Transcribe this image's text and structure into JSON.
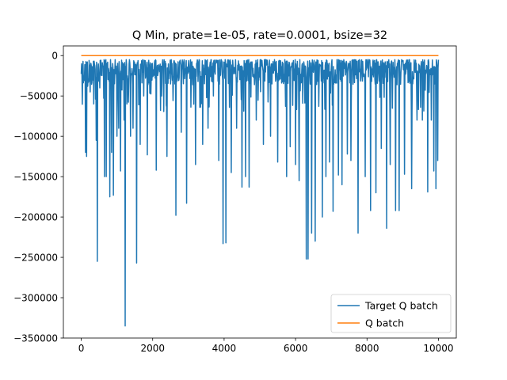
{
  "chart_data": {
    "type": "line",
    "title": "Q Min, prate=1e-05, rate=0.0001, bsize=32",
    "xlabel": "",
    "ylabel": "",
    "xlim": [
      -500,
      10500
    ],
    "ylim": [
      -350000,
      12000
    ],
    "xticks": [
      0,
      2000,
      4000,
      6000,
      8000,
      10000
    ],
    "xtick_labels": [
      "0",
      "2000",
      "4000",
      "6000",
      "8000",
      "10000"
    ],
    "yticks": [
      0,
      -50000,
      -100000,
      -150000,
      -200000,
      -250000,
      -300000,
      -350000
    ],
    "ytick_labels": [
      "0",
      "−50000",
      "−100000",
      "−150000",
      "−200000",
      "−250000",
      "−300000",
      "−350000"
    ],
    "grid": false,
    "legend_position": "lower-right",
    "x_range": [
      0,
      10000
    ],
    "series": [
      {
        "name": "Target Q batch",
        "color": "#1f77b4",
        "baseline_range": [
          -40000,
          -5000
        ],
        "spikes": [
          [
            120,
            -120000
          ],
          [
            150,
            -125000
          ],
          [
            180,
            -38000
          ],
          [
            250,
            -45000
          ],
          [
            350,
            -60000
          ],
          [
            420,
            -105000
          ],
          [
            450,
            -255000
          ],
          [
            520,
            -40000
          ],
          [
            650,
            -150000
          ],
          [
            700,
            -150000
          ],
          [
            800,
            -175000
          ],
          [
            850,
            -120000
          ],
          [
            900,
            -173000
          ],
          [
            1000,
            -100000
          ],
          [
            1050,
            -90000
          ],
          [
            1100,
            -143000
          ],
          [
            1200,
            -80000
          ],
          [
            1230,
            -335000
          ],
          [
            1280,
            -60000
          ],
          [
            1380,
            -100000
          ],
          [
            1450,
            -90000
          ],
          [
            1550,
            -257000
          ],
          [
            1650,
            -110000
          ],
          [
            1750,
            -50000
          ],
          [
            1850,
            -123000
          ],
          [
            2100,
            -142000
          ],
          [
            2250,
            -50000
          ],
          [
            2400,
            -125000
          ],
          [
            2650,
            -198000
          ],
          [
            2800,
            -95000
          ],
          [
            2950,
            -183000
          ],
          [
            3200,
            -135000
          ],
          [
            3400,
            -110000
          ],
          [
            3550,
            -90000
          ],
          [
            3700,
            -50000
          ],
          [
            3850,
            -130000
          ],
          [
            3970,
            -233000
          ],
          [
            4050,
            -232000
          ],
          [
            4200,
            -145000
          ],
          [
            4350,
            -90000
          ],
          [
            4500,
            -163000
          ],
          [
            4600,
            -150000
          ],
          [
            4700,
            -163000
          ],
          [
            4900,
            -80000
          ],
          [
            5100,
            -110000
          ],
          [
            5300,
            -100000
          ],
          [
            5500,
            -132000
          ],
          [
            5750,
            -150000
          ],
          [
            5850,
            -113000
          ],
          [
            6000,
            -135000
          ],
          [
            6100,
            -155000
          ],
          [
            6300,
            -252000
          ],
          [
            6350,
            -252000
          ],
          [
            6450,
            -220000
          ],
          [
            6550,
            -230000
          ],
          [
            6750,
            -200000
          ],
          [
            6850,
            -150000
          ],
          [
            6950,
            -132000
          ],
          [
            7050,
            -193000
          ],
          [
            7200,
            -148000
          ],
          [
            7300,
            -160000
          ],
          [
            7450,
            -122000
          ],
          [
            7550,
            -130000
          ],
          [
            7750,
            -220000
          ],
          [
            7950,
            -150000
          ],
          [
            8100,
            -192000
          ],
          [
            8250,
            -170000
          ],
          [
            8400,
            -115000
          ],
          [
            8550,
            -214000
          ],
          [
            8650,
            -135000
          ],
          [
            8800,
            -192000
          ],
          [
            8900,
            -192000
          ],
          [
            9050,
            -147000
          ],
          [
            9250,
            -165000
          ],
          [
            9400,
            -80000
          ],
          [
            9550,
            -80000
          ],
          [
            9700,
            -169000
          ],
          [
            9800,
            -80000
          ],
          [
            9870,
            -143000
          ],
          [
            9930,
            -165000
          ],
          [
            9980,
            -130000
          ]
        ]
      },
      {
        "name": "Q batch",
        "color": "#ff7f0e",
        "x": [
          0,
          10000
        ],
        "y": [
          0,
          0
        ]
      }
    ]
  }
}
